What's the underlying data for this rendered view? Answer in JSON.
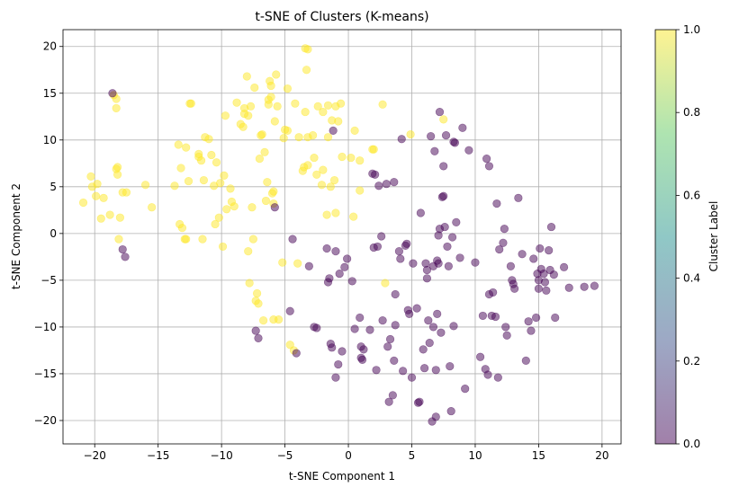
{
  "chart_data": {
    "type": "scatter",
    "title": "t-SNE of Clusters (K-means)",
    "xlabel": "t-SNE Component 1",
    "ylabel": "t-SNE Component 2",
    "xlim": [
      -22.5,
      21.5
    ],
    "ylim": [
      -22.5,
      21.8
    ],
    "xticks": [
      -20,
      -15,
      -10,
      -5,
      0,
      5,
      10,
      15,
      20
    ],
    "yticks": [
      -20,
      -15,
      -10,
      -5,
      0,
      5,
      10,
      15,
      20
    ],
    "grid": true,
    "point_opacity": 0.5,
    "colorbar": {
      "label": "Cluster Label",
      "ticks": [
        0.0,
        0.2,
        0.4,
        0.6,
        0.8,
        1.0
      ],
      "tick_labels": [
        "0.0",
        "0.2",
        "0.4",
        "0.6",
        "0.8",
        "1.0"
      ],
      "range": [
        0.0,
        1.0
      ],
      "colors": [
        "#440154",
        "#3b528b",
        "#21918c",
        "#5ec962",
        "#fde725"
      ]
    },
    "series": [
      {
        "cluster": 1,
        "color": "#fde725",
        "points": [
          [
            -20.9,
            3.3
          ],
          [
            -20.3,
            6.1
          ],
          [
            -20.2,
            5.0
          ],
          [
            -19.9,
            4.0
          ],
          [
            -19.8,
            5.3
          ],
          [
            -19.5,
            1.6
          ],
          [
            -19.3,
            3.8
          ],
          [
            -18.8,
            2.0
          ],
          [
            -18.5,
            14.8
          ],
          [
            -18.3,
            14.4
          ],
          [
            -18.3,
            13.4
          ],
          [
            -18.2,
            7.1
          ],
          [
            -18.3,
            6.9
          ],
          [
            -18.2,
            6.3
          ],
          [
            -18.1,
            -0.6
          ],
          [
            -18.0,
            1.7
          ],
          [
            -17.8,
            4.4
          ],
          [
            -17.5,
            4.4
          ],
          [
            -16.0,
            5.2
          ],
          [
            -15.5,
            2.8
          ],
          [
            -13.7,
            5.1
          ],
          [
            -13.4,
            9.5
          ],
          [
            -13.3,
            1.0
          ],
          [
            -13.2,
            7.0
          ],
          [
            -13.1,
            0.6
          ],
          [
            -12.9,
            -0.6
          ],
          [
            -12.8,
            -0.6
          ],
          [
            -12.8,
            9.2
          ],
          [
            -12.6,
            5.6
          ],
          [
            -12.5,
            13.9
          ],
          [
            -12.4,
            13.9
          ],
          [
            -11.8,
            8.5
          ],
          [
            -11.8,
            8.2
          ],
          [
            -11.6,
            7.8
          ],
          [
            -11.5,
            -0.6
          ],
          [
            -11.4,
            5.7
          ],
          [
            -11.3,
            10.3
          ],
          [
            -11.0,
            10.1
          ],
          [
            -10.8,
            8.4
          ],
          [
            -10.6,
            5.1
          ],
          [
            -10.5,
            1.0
          ],
          [
            -10.4,
            7.6
          ],
          [
            -10.2,
            1.7
          ],
          [
            -10.1,
            5.4
          ],
          [
            -9.9,
            -1.4
          ],
          [
            -9.8,
            6.2
          ],
          [
            -9.7,
            12.6
          ],
          [
            -9.6,
            2.6
          ],
          [
            -9.3,
            4.8
          ],
          [
            -9.2,
            3.4
          ],
          [
            -9.0,
            2.9
          ],
          [
            -8.8,
            14.0
          ],
          [
            -8.5,
            11.7
          ],
          [
            -8.3,
            11.4
          ],
          [
            -8.2,
            13.4
          ],
          [
            -8.2,
            12.8
          ],
          [
            -8.0,
            16.8
          ],
          [
            -7.9,
            -1.9
          ],
          [
            -7.9,
            12.6
          ],
          [
            -7.8,
            -5.3
          ],
          [
            -7.7,
            13.6
          ],
          [
            -7.6,
            2.8
          ],
          [
            -7.5,
            -0.6
          ],
          [
            -7.4,
            15.6
          ],
          [
            -7.3,
            -7.2
          ],
          [
            -7.2,
            -6.4
          ],
          [
            -7.1,
            -7.5
          ],
          [
            -7.0,
            8.0
          ],
          [
            -6.9,
            10.5
          ],
          [
            -6.8,
            10.6
          ],
          [
            -6.7,
            -9.3
          ],
          [
            -6.6,
            8.7
          ],
          [
            -6.5,
            3.5
          ],
          [
            -6.4,
            5.5
          ],
          [
            -6.3,
            14.3
          ],
          [
            -6.3,
            13.8
          ],
          [
            -6.2,
            16.3
          ],
          [
            -6.1,
            15.8
          ],
          [
            -6.0,
            4.3
          ],
          [
            -5.9,
            4.5
          ],
          [
            -5.9,
            3.2
          ],
          [
            -5.9,
            -9.2
          ],
          [
            -5.8,
            12.0
          ],
          [
            -5.7,
            17.0
          ],
          [
            -5.6,
            13.6
          ],
          [
            -5.5,
            -9.2
          ],
          [
            -5.2,
            -3.1
          ],
          [
            -5.1,
            10.2
          ],
          [
            -5.0,
            11.1
          ],
          [
            -4.8,
            11.0
          ],
          [
            -4.8,
            15.5
          ],
          [
            -4.6,
            -11.9
          ],
          [
            -4.3,
            -12.5
          ],
          [
            -4.2,
            13.9
          ],
          [
            -4.0,
            -3.2
          ],
          [
            -3.9,
            10.3
          ],
          [
            -3.6,
            6.7
          ],
          [
            -3.5,
            7.1
          ],
          [
            -3.4,
            13.0
          ],
          [
            -3.3,
            17.5
          ],
          [
            -3.4,
            19.8
          ],
          [
            -3.2,
            19.7
          ],
          [
            -3.2,
            10.3
          ],
          [
            -2.8,
            10.5
          ],
          [
            -2.7,
            8.1
          ],
          [
            -2.5,
            6.3
          ],
          [
            -2.4,
            13.6
          ],
          [
            -2.1,
            5.2
          ],
          [
            -2.0,
            13.0
          ],
          [
            -2.0,
            6.8
          ],
          [
            -1.7,
            2.0
          ],
          [
            -1.6,
            10.3
          ],
          [
            -1.6,
            13.7
          ],
          [
            -1.4,
            5.0
          ],
          [
            -1.3,
            12.1
          ],
          [
            -1.1,
            5.7
          ],
          [
            -1.0,
            2.2
          ],
          [
            -1.0,
            13.6
          ],
          [
            -0.8,
            12.0
          ],
          [
            -0.6,
            13.9
          ],
          [
            -0.5,
            8.2
          ],
          [
            0.2,
            8.1
          ],
          [
            0.4,
            1.8
          ],
          [
            0.5,
            11.0
          ],
          [
            0.9,
            7.8
          ],
          [
            0.9,
            4.6
          ],
          [
            1.9,
            9.0
          ],
          [
            2.0,
            9.0
          ],
          [
            2.7,
            13.8
          ],
          [
            2.9,
            -5.3
          ],
          [
            4.9,
            10.6
          ],
          [
            7.5,
            12.2
          ],
          [
            -3.2,
            7.3
          ],
          [
            -6.1,
            14.6
          ]
        ]
      },
      {
        "cluster": 0,
        "color": "#440154",
        "points": [
          [
            -18.6,
            15.0
          ],
          [
            -17.8,
            -1.7
          ],
          [
            -17.6,
            -2.5
          ],
          [
            -7.3,
            -10.4
          ],
          [
            -7.1,
            -11.2
          ],
          [
            -5.8,
            2.8
          ],
          [
            -4.6,
            -8.3
          ],
          [
            -4.4,
            -0.6
          ],
          [
            -4.1,
            -12.8
          ],
          [
            -3.1,
            -3.5
          ],
          [
            -2.7,
            -10.0
          ],
          [
            -2.5,
            -10.1
          ],
          [
            -1.7,
            -1.6
          ],
          [
            -1.6,
            -5.2
          ],
          [
            -1.5,
            -4.8
          ],
          [
            -1.4,
            -11.8
          ],
          [
            -1.3,
            -12.2
          ],
          [
            -1.2,
            11.0
          ],
          [
            -1.0,
            -1.9
          ],
          [
            -1.0,
            -15.4
          ],
          [
            -0.8,
            -14.0
          ],
          [
            -0.7,
            -4.3
          ],
          [
            -0.5,
            -12.6
          ],
          [
            -0.3,
            -3.6
          ],
          [
            -0.1,
            -2.7
          ],
          [
            0.3,
            -5.1
          ],
          [
            0.5,
            -10.2
          ],
          [
            0.9,
            -9.0
          ],
          [
            1.0,
            -12.1
          ],
          [
            1.0,
            -13.3
          ],
          [
            1.1,
            -13.5
          ],
          [
            1.2,
            -12.4
          ],
          [
            1.7,
            -10.3
          ],
          [
            1.9,
            6.4
          ],
          [
            2.0,
            -1.5
          ],
          [
            2.1,
            6.3
          ],
          [
            2.2,
            -14.6
          ],
          [
            2.3,
            -1.4
          ],
          [
            2.4,
            5.1
          ],
          [
            2.6,
            -0.3
          ],
          [
            2.7,
            -9.3
          ],
          [
            3.0,
            5.3
          ],
          [
            3.1,
            -12.1
          ],
          [
            3.2,
            -18.0
          ],
          [
            3.3,
            -11.3
          ],
          [
            3.5,
            -17.3
          ],
          [
            3.6,
            5.5
          ],
          [
            3.6,
            -13.6
          ],
          [
            3.7,
            -6.5
          ],
          [
            3.7,
            -9.8
          ],
          [
            4.0,
            -1.9
          ],
          [
            4.1,
            -2.7
          ],
          [
            4.2,
            10.1
          ],
          [
            4.3,
            -14.7
          ],
          [
            4.5,
            -1.3
          ],
          [
            4.6,
            -1.1
          ],
          [
            4.7,
            -8.2
          ],
          [
            4.8,
            -8.6
          ],
          [
            5.0,
            -15.4
          ],
          [
            5.1,
            -3.2
          ],
          [
            5.4,
            -8.0
          ],
          [
            5.5,
            -18.1
          ],
          [
            5.6,
            -18.0
          ],
          [
            5.7,
            2.2
          ],
          [
            5.9,
            -12.4
          ],
          [
            6.0,
            -14.4
          ],
          [
            6.1,
            -3.2
          ],
          [
            6.2,
            -4.8
          ],
          [
            6.2,
            -3.9
          ],
          [
            6.3,
            -9.3
          ],
          [
            6.4,
            -11.7
          ],
          [
            6.5,
            10.4
          ],
          [
            6.6,
            -20.1
          ],
          [
            6.7,
            -3.5
          ],
          [
            6.8,
            8.8
          ],
          [
            6.9,
            -14.6
          ],
          [
            6.9,
            -19.6
          ],
          [
            7.0,
            -8.6
          ],
          [
            7.0,
            -2.9
          ],
          [
            7.1,
            -0.2
          ],
          [
            7.1,
            -3.2
          ],
          [
            7.2,
            0.5
          ],
          [
            7.2,
            13.0
          ],
          [
            7.3,
            -10.6
          ],
          [
            7.4,
            3.9
          ],
          [
            7.5,
            4.0
          ],
          [
            7.5,
            7.2
          ],
          [
            7.6,
            0.7
          ],
          [
            7.7,
            10.5
          ],
          [
            7.8,
            -1.4
          ],
          [
            7.9,
            -3.5
          ],
          [
            8.0,
            -14.2
          ],
          [
            8.1,
            -19.0
          ],
          [
            8.2,
            -0.4
          ],
          [
            8.3,
            9.8
          ],
          [
            8.4,
            9.7
          ],
          [
            8.5,
            1.2
          ],
          [
            8.8,
            -2.6
          ],
          [
            9.0,
            11.3
          ],
          [
            9.2,
            -16.6
          ],
          [
            9.5,
            8.9
          ],
          [
            10.0,
            -3.1
          ],
          [
            10.4,
            -13.2
          ],
          [
            10.6,
            -8.8
          ],
          [
            10.8,
            -14.5
          ],
          [
            10.9,
            8.0
          ],
          [
            11.0,
            -15.1
          ],
          [
            11.1,
            -6.5
          ],
          [
            11.1,
            7.2
          ],
          [
            11.3,
            -8.8
          ],
          [
            11.4,
            -6.3
          ],
          [
            11.6,
            -8.9
          ],
          [
            11.7,
            3.2
          ],
          [
            11.8,
            -15.4
          ],
          [
            11.9,
            -1.7
          ],
          [
            12.2,
            -1.0
          ],
          [
            12.3,
            0.5
          ],
          [
            12.4,
            -10.0
          ],
          [
            12.5,
            -10.9
          ],
          [
            12.8,
            -3.5
          ],
          [
            12.9,
            -5.0
          ],
          [
            13.0,
            -5.4
          ],
          [
            13.1,
            -5.9
          ],
          [
            13.4,
            3.8
          ],
          [
            13.7,
            -2.2
          ],
          [
            14.0,
            -13.6
          ],
          [
            14.2,
            -9.4
          ],
          [
            14.4,
            -10.4
          ],
          [
            14.6,
            -2.7
          ],
          [
            14.8,
            -9.0
          ],
          [
            14.9,
            -4.3
          ],
          [
            15.0,
            -5.0
          ],
          [
            15.0,
            -5.9
          ],
          [
            15.1,
            -1.6
          ],
          [
            15.2,
            -3.8
          ],
          [
            15.4,
            -4.3
          ],
          [
            15.5,
            -5.2
          ],
          [
            15.6,
            -6.1
          ],
          [
            15.8,
            -1.8
          ],
          [
            15.9,
            -3.9
          ],
          [
            16.0,
            0.7
          ],
          [
            16.2,
            -4.4
          ],
          [
            16.3,
            -9.0
          ],
          [
            17.0,
            -3.6
          ],
          [
            17.4,
            -5.8
          ],
          [
            18.6,
            -5.7
          ],
          [
            19.4,
            -5.6
          ],
          [
            8.3,
            -9.9
          ],
          [
            6.7,
            -10.0
          ]
        ]
      }
    ]
  }
}
